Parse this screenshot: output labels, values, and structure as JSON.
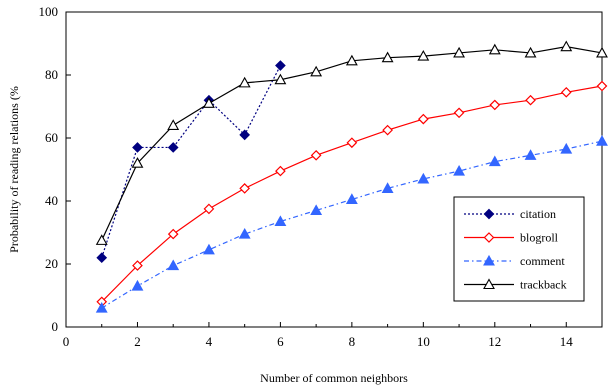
{
  "chart_data": {
    "type": "line",
    "title": "",
    "xlabel": "Number of common neighbors",
    "ylabel": "Probability of reading relations (%",
    "xlim": [
      0,
      15
    ],
    "ylim": [
      0,
      100
    ],
    "xticks": [
      0,
      2,
      4,
      6,
      8,
      10,
      12,
      14
    ],
    "yticks": [
      0,
      20,
      40,
      60,
      80,
      100
    ],
    "grid": false,
    "legend_position": "bottom-right",
    "series": [
      {
        "name": "citation",
        "color": "#000080",
        "line_style": "dotted",
        "marker": "diamond-filled",
        "x": [
          1,
          2,
          3,
          4,
          5,
          6
        ],
        "y": [
          22,
          57,
          57,
          72,
          61,
          83
        ]
      },
      {
        "name": "blogroll",
        "color": "#ff0000",
        "line_style": "solid",
        "marker": "diamond-open",
        "x": [
          1,
          2,
          3,
          4,
          5,
          6,
          7,
          8,
          9,
          10,
          11,
          12,
          13,
          14,
          15
        ],
        "y": [
          8,
          19.5,
          29.5,
          37.5,
          44,
          49.5,
          54.5,
          58.5,
          62.5,
          66,
          68,
          70.5,
          72,
          74.5,
          76.5
        ]
      },
      {
        "name": "comment",
        "color": "#3366ff",
        "line_style": "dash-dot",
        "marker": "triangle-filled",
        "x": [
          1,
          2,
          3,
          4,
          5,
          6,
          7,
          8,
          9,
          10,
          11,
          12,
          13,
          14,
          15
        ],
        "y": [
          6,
          13,
          19.5,
          24.5,
          29.5,
          33.5,
          37,
          40.5,
          44,
          47,
          49.5,
          52.5,
          54.5,
          56.5,
          59
        ]
      },
      {
        "name": "trackback",
        "color": "#000000",
        "line_style": "solid",
        "marker": "triangle-open",
        "x": [
          1,
          2,
          3,
          4,
          5,
          6,
          7,
          8,
          9,
          10,
          11,
          12,
          13,
          14,
          15
        ],
        "y": [
          27.5,
          52,
          64,
          71,
          77.5,
          78.5,
          81,
          84.5,
          85.5,
          86,
          87,
          88,
          87,
          89,
          87
        ]
      }
    ]
  }
}
